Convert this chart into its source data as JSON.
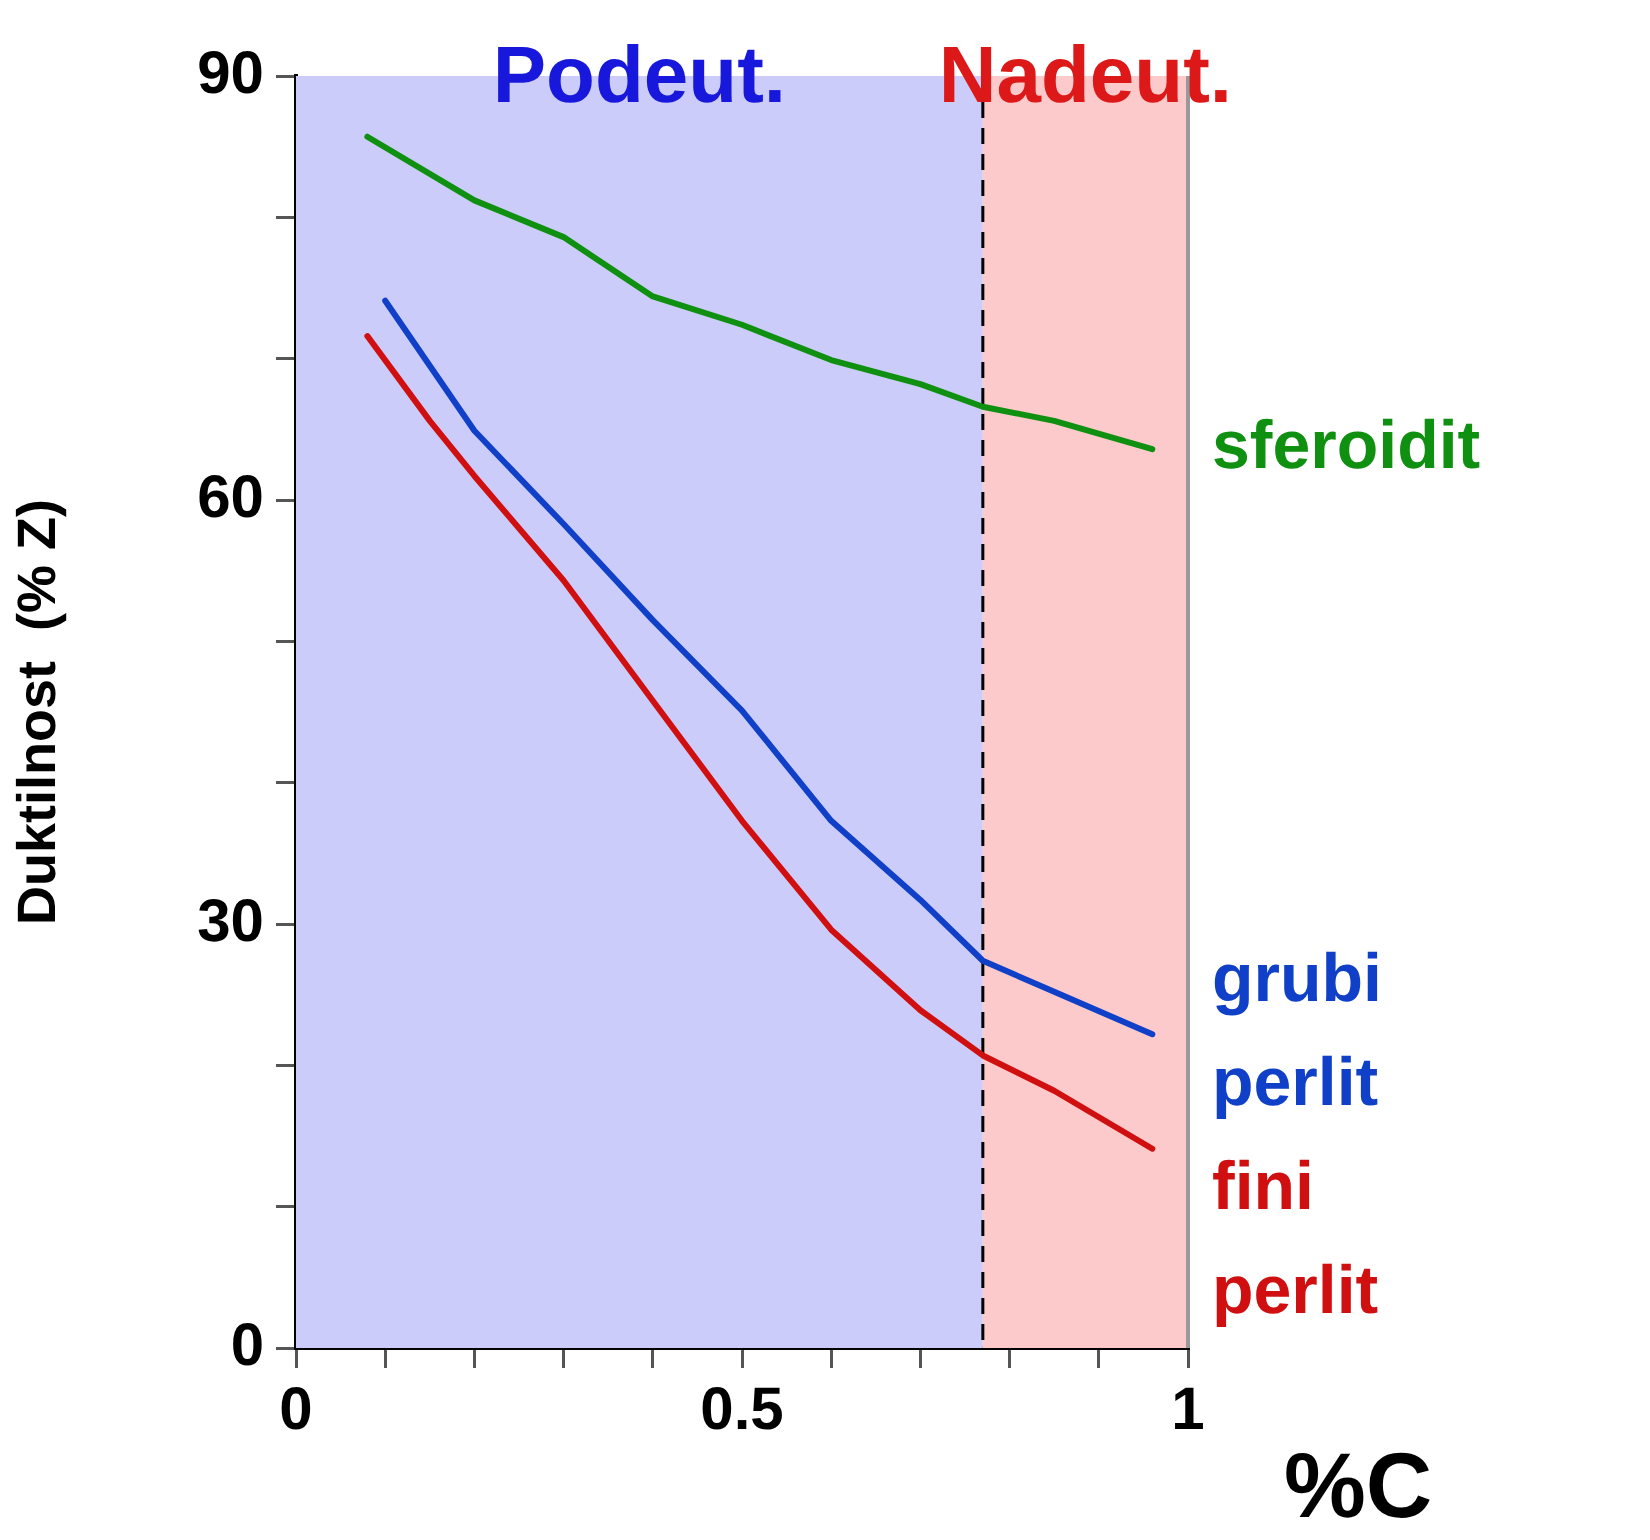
{
  "chart_data": {
    "type": "line",
    "xlabel": "%C",
    "ylabel": "Duktilnost  (% Z)",
    "xlim": [
      0,
      1
    ],
    "xticks": [
      0,
      {
        "value": 0.1,
        "label": null
      },
      {
        "value": 0.2,
        "label": null
      },
      {
        "value": 0.3,
        "label": null
      },
      {
        "value": 0.4,
        "label": null
      },
      0.5,
      {
        "value": 0.6,
        "label": null
      },
      {
        "value": 0.7,
        "label": null
      },
      {
        "value": 0.8,
        "label": null
      },
      {
        "value": 0.9,
        "label": null
      },
      1
    ],
    "ylim": [
      0,
      90
    ],
    "yticks": [
      0,
      {
        "value": 10,
        "label": null
      },
      {
        "value": 20,
        "label": null
      },
      30,
      {
        "value": 40,
        "label": null
      },
      {
        "value": 50,
        "label": null
      },
      60,
      {
        "value": 70,
        "label": null
      },
      {
        "value": 80,
        "label": null
      },
      90
    ],
    "grid": false,
    "legend": false,
    "marker": "none",
    "line_style": "solid",
    "bands": [
      {
        "axis": "x",
        "from": 0,
        "to": 0.77,
        "label": "Podeut.",
        "color": "#ccccfa"
      },
      {
        "axis": "x",
        "from": 0.77,
        "to": 1,
        "label": "Nadeut.",
        "color": "#fccaca"
      }
    ],
    "ref_lines": [
      {
        "axis": "x",
        "value": 0.77,
        "color": "#000000",
        "line_style": "dashed"
      }
    ],
    "series": [
      {
        "name": "sferoidit",
        "color": "#109010",
        "x": [
          0.08,
          0.2,
          0.3,
          0.4,
          0.5,
          0.6,
          0.7,
          0.77,
          0.85,
          0.96
        ],
        "values": [
          85.7,
          81.2,
          78.6,
          74.4,
          72.4,
          69.9,
          68.2,
          66.6,
          65.6,
          63.6
        ]
      },
      {
        "name": "grubi perlit",
        "color": "#1040c8",
        "x": [
          0.1,
          0.2,
          0.3,
          0.4,
          0.5,
          0.6,
          0.7,
          0.77,
          0.85,
          0.96
        ],
        "values": [
          74.1,
          64.9,
          58.3,
          51.5,
          45.1,
          37.3,
          31.7,
          27.4,
          25.2,
          22.2
        ]
      },
      {
        "name": "fini perlit",
        "color": "#d01010",
        "x": [
          0.08,
          0.15,
          0.2,
          0.3,
          0.4,
          0.5,
          0.6,
          0.7,
          0.77,
          0.85,
          0.96
        ],
        "values": [
          71.6,
          65.6,
          61.7,
          54.3,
          45.8,
          37.3,
          29.6,
          23.9,
          20.7,
          18.2,
          14.1
        ]
      }
    ]
  }
}
